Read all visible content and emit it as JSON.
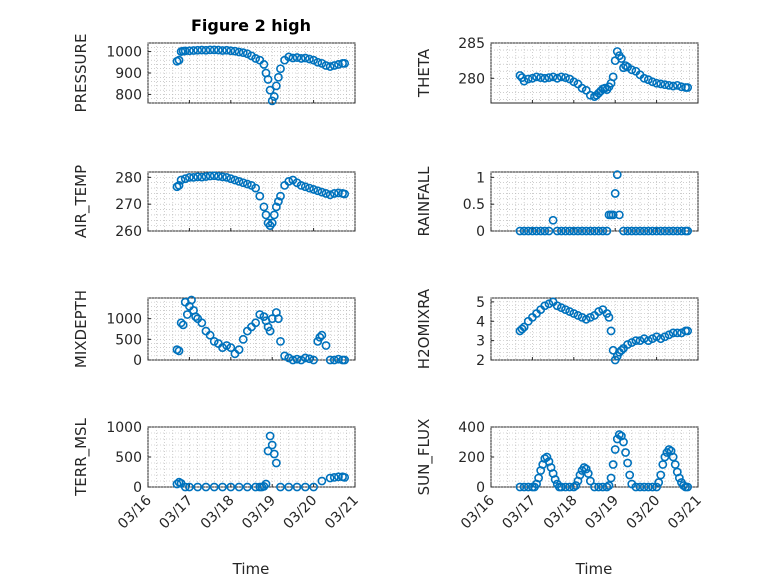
{
  "title": "Figure 2 high",
  "xlabel": "Time",
  "x_ticks": [
    "03/16",
    "03/17",
    "03/18",
    "03/19",
    "03/20",
    "03/21"
  ],
  "marker_color": "#0072BD",
  "chart_data": [
    {
      "type": "scatter",
      "id": "pressure",
      "ylabel": "PRESSURE",
      "ylim": [
        760,
        1040
      ],
      "y_ticks": [
        800,
        900,
        1000
      ],
      "grid": true,
      "x": [
        0.7,
        0.75,
        0.8,
        0.85,
        0.9,
        1,
        1.1,
        1.2,
        1.3,
        1.4,
        1.5,
        1.6,
        1.7,
        1.8,
        1.9,
        2,
        2.1,
        2.2,
        2.3,
        2.4,
        2.5,
        2.6,
        2.7,
        2.8,
        2.85,
        2.9,
        2.95,
        3.0,
        3.05,
        3.1,
        3.15,
        3.2,
        3.3,
        3.4,
        3.5,
        3.6,
        3.7,
        3.8,
        3.9,
        4.0,
        4.1,
        4.2,
        4.3,
        4.4,
        4.5,
        4.6,
        4.7,
        4.75
      ],
      "y": [
        955,
        960,
        1000,
        1002,
        1003,
        1004,
        1005,
        1006,
        1007,
        1006,
        1008,
        1008,
        1007,
        1005,
        1006,
        1004,
        1002,
        998,
        995,
        990,
        980,
        968,
        960,
        940,
        900,
        870,
        820,
        770,
        790,
        840,
        880,
        920,
        960,
        975,
        970,
        972,
        968,
        970,
        965,
        960,
        950,
        945,
        935,
        930,
        935,
        940,
        945,
        945
      ]
    },
    {
      "type": "scatter",
      "id": "theta",
      "ylabel": "THETA",
      "ylim": [
        276.5,
        285
      ],
      "y_ticks": [
        280,
        285
      ],
      "grid": true,
      "x": [
        0.7,
        0.75,
        0.8,
        0.9,
        1,
        1.1,
        1.2,
        1.3,
        1.4,
        1.5,
        1.6,
        1.7,
        1.8,
        1.9,
        2,
        2.1,
        2.2,
        2.3,
        2.4,
        2.5,
        2.55,
        2.6,
        2.65,
        2.7,
        2.75,
        2.8,
        2.85,
        2.9,
        2.95,
        3.0,
        3.05,
        3.1,
        3.15,
        3.2,
        3.25,
        3.3,
        3.4,
        3.5,
        3.6,
        3.7,
        3.8,
        3.9,
        4.0,
        4.1,
        4.2,
        4.3,
        4.4,
        4.5,
        4.6,
        4.7,
        4.75
      ],
      "y": [
        280.4,
        280.1,
        279.6,
        279.9,
        280.0,
        280.2,
        280.1,
        280.0,
        280.1,
        280.2,
        280.0,
        280.2,
        280.1,
        279.9,
        279.5,
        279.2,
        278.6,
        278.3,
        277.6,
        277.4,
        277.6,
        277.9,
        278.2,
        278.5,
        278.6,
        278.4,
        278.8,
        279.3,
        280.2,
        282.5,
        283.8,
        283.2,
        282.8,
        281.5,
        281.8,
        281.6,
        281.2,
        281.0,
        280.5,
        280.0,
        279.8,
        279.5,
        279.3,
        279.2,
        279.1,
        279.0,
        278.9,
        279.0,
        278.8,
        278.7,
        278.7
      ]
    },
    {
      "type": "scatter",
      "id": "air_temp",
      "ylabel": "AIR_TEMP",
      "ylim": [
        260,
        282
      ],
      "y_ticks": [
        260,
        270,
        280
      ],
      "grid": true,
      "x": [
        0.7,
        0.75,
        0.8,
        0.9,
        1,
        1.1,
        1.2,
        1.3,
        1.4,
        1.5,
        1.6,
        1.7,
        1.8,
        1.9,
        2,
        2.1,
        2.2,
        2.3,
        2.4,
        2.5,
        2.6,
        2.7,
        2.8,
        2.85,
        2.9,
        2.95,
        3.0,
        3.05,
        3.1,
        3.15,
        3.2,
        3.3,
        3.4,
        3.5,
        3.6,
        3.7,
        3.8,
        3.9,
        4.0,
        4.1,
        4.2,
        4.3,
        4.4,
        4.5,
        4.6,
        4.7,
        4.75
      ],
      "y": [
        276.5,
        277,
        279,
        279.5,
        280,
        280,
        280.2,
        280.1,
        280.3,
        280.5,
        280.6,
        280.4,
        280.2,
        280.0,
        279.5,
        279,
        278.5,
        278,
        277.5,
        277,
        276,
        273,
        269,
        266,
        263,
        262,
        263,
        266,
        269,
        271,
        273,
        277,
        278.5,
        279,
        278,
        277,
        276.5,
        276,
        275.5,
        275,
        274.5,
        274,
        273.5,
        274,
        274.2,
        274,
        273.8
      ]
    },
    {
      "type": "scatter",
      "id": "rainfall",
      "ylabel": "RAINFALL",
      "ylim": [
        0,
        1.1
      ],
      "y_ticks": [
        0,
        0.5,
        1
      ],
      "grid": true,
      "x": [
        0.7,
        0.8,
        0.9,
        1,
        1.1,
        1.2,
        1.3,
        1.4,
        1.5,
        1.6,
        1.7,
        1.8,
        1.9,
        2,
        2.1,
        2.2,
        2.3,
        2.4,
        2.5,
        2.6,
        2.7,
        2.8,
        2.85,
        2.9,
        2.95,
        3.0,
        3.05,
        3.1,
        3.2,
        3.3,
        3.4,
        3.5,
        3.6,
        3.7,
        3.8,
        3.9,
        4.0,
        4.1,
        4.2,
        4.3,
        4.4,
        4.5,
        4.6,
        4.7,
        4.75
      ],
      "y": [
        0,
        0,
        0,
        0,
        0,
        0,
        0,
        0,
        0.2,
        0,
        0,
        0,
        0,
        0,
        0,
        0,
        0,
        0,
        0,
        0,
        0,
        0,
        0.3,
        0.3,
        0.3,
        0.7,
        1.05,
        0.3,
        0,
        0,
        0,
        0,
        0,
        0,
        0,
        0,
        0,
        0,
        0,
        0,
        0,
        0,
        0,
        0,
        0
      ]
    },
    {
      "type": "scatter",
      "id": "mixdepth",
      "ylabel": "MIXDEPTH",
      "ylim": [
        0,
        1500
      ],
      "y_ticks": [
        0,
        500,
        1000
      ],
      "grid": true,
      "x": [
        0.7,
        0.75,
        0.8,
        0.85,
        0.9,
        0.95,
        1.0,
        1.05,
        1.1,
        1.15,
        1.2,
        1.3,
        1.4,
        1.5,
        1.6,
        1.7,
        1.8,
        1.9,
        2.0,
        2.1,
        2.2,
        2.3,
        2.4,
        2.5,
        2.6,
        2.7,
        2.8,
        2.85,
        2.9,
        2.95,
        3.0,
        3.1,
        3.15,
        3.2,
        3.3,
        3.4,
        3.5,
        3.6,
        3.7,
        3.8,
        3.9,
        4.0,
        4.1,
        4.15,
        4.2,
        4.3,
        4.4,
        4.5,
        4.6,
        4.7,
        4.75
      ],
      "y": [
        250,
        220,
        900,
        850,
        1400,
        1100,
        1300,
        1450,
        1200,
        1050,
        1000,
        900,
        700,
        600,
        450,
        400,
        300,
        350,
        300,
        150,
        250,
        500,
        700,
        800,
        900,
        1100,
        1050,
        950,
        800,
        700,
        1000,
        1150,
        1000,
        450,
        100,
        50,
        0,
        20,
        0,
        50,
        30,
        0,
        450,
        550,
        600,
        350,
        0,
        0,
        20,
        0,
        0
      ]
    },
    {
      "type": "scatter",
      "id": "h2omixra",
      "ylabel": "H2OMIXRA",
      "ylim": [
        2,
        5.2
      ],
      "y_ticks": [
        2,
        3,
        4,
        5
      ],
      "grid": true,
      "x": [
        0.7,
        0.75,
        0.8,
        0.9,
        1.0,
        1.1,
        1.2,
        1.3,
        1.4,
        1.5,
        1.6,
        1.7,
        1.8,
        1.9,
        2.0,
        2.1,
        2.2,
        2.3,
        2.4,
        2.5,
        2.6,
        2.7,
        2.8,
        2.85,
        2.9,
        2.95,
        3.0,
        3.05,
        3.1,
        3.15,
        3.2,
        3.3,
        3.4,
        3.5,
        3.6,
        3.7,
        3.8,
        3.9,
        4.0,
        4.1,
        4.2,
        4.3,
        4.4,
        4.5,
        4.6,
        4.7,
        4.75
      ],
      "y": [
        3.5,
        3.6,
        3.7,
        4.0,
        4.2,
        4.4,
        4.6,
        4.8,
        4.9,
        5.0,
        4.8,
        4.7,
        4.6,
        4.5,
        4.4,
        4.3,
        4.2,
        4.1,
        4.2,
        4.3,
        4.5,
        4.6,
        4.4,
        4.2,
        3.5,
        2.5,
        2.0,
        2.2,
        2.4,
        2.5,
        2.6,
        2.8,
        2.9,
        3.0,
        3.0,
        3.1,
        3.0,
        3.1,
        3.2,
        3.1,
        3.2,
        3.3,
        3.4,
        3.4,
        3.4,
        3.5,
        3.5
      ]
    },
    {
      "type": "scatter",
      "id": "terr_msl",
      "ylabel": "TERR_MSL",
      "ylim": [
        0,
        1000
      ],
      "y_ticks": [
        0,
        500,
        1000
      ],
      "grid": true,
      "x": [
        0.7,
        0.75,
        0.8,
        0.9,
        1.0,
        1.2,
        1.4,
        1.6,
        1.8,
        2.0,
        2.2,
        2.4,
        2.6,
        2.7,
        2.75,
        2.8,
        2.85,
        2.9,
        2.95,
        3.0,
        3.05,
        3.1,
        3.2,
        3.4,
        3.6,
        3.8,
        4.0,
        4.2,
        4.4,
        4.5,
        4.6,
        4.7,
        4.75
      ],
      "y": [
        50,
        80,
        60,
        0,
        0,
        0,
        0,
        0,
        0,
        0,
        0,
        0,
        0,
        0,
        0,
        10,
        50,
        600,
        850,
        700,
        550,
        400,
        0,
        0,
        0,
        0,
        0,
        100,
        150,
        160,
        170,
        170,
        160
      ]
    },
    {
      "type": "scatter",
      "id": "sun_flux",
      "ylabel": "SUN_FLUX",
      "ylim": [
        0,
        400
      ],
      "y_ticks": [
        0,
        200,
        400
      ],
      "grid": true,
      "x": [
        0.7,
        0.8,
        0.9,
        1.0,
        1.05,
        1.1,
        1.15,
        1.2,
        1.25,
        1.3,
        1.35,
        1.4,
        1.45,
        1.5,
        1.55,
        1.6,
        1.65,
        1.7,
        1.8,
        1.9,
        2.0,
        2.05,
        2.1,
        2.15,
        2.2,
        2.25,
        2.3,
        2.35,
        2.4,
        2.5,
        2.6,
        2.7,
        2.8,
        2.85,
        2.9,
        2.95,
        3.0,
        3.05,
        3.1,
        3.15,
        3.2,
        3.25,
        3.3,
        3.35,
        3.4,
        3.5,
        3.6,
        3.7,
        3.8,
        3.9,
        4.0,
        4.05,
        4.1,
        4.15,
        4.2,
        4.25,
        4.3,
        4.35,
        4.4,
        4.45,
        4.5,
        4.55,
        4.6,
        4.65,
        4.7,
        4.75
      ],
      "y": [
        0,
        0,
        0,
        0,
        0,
        20,
        60,
        110,
        150,
        190,
        200,
        170,
        130,
        90,
        50,
        20,
        0,
        0,
        0,
        0,
        0,
        10,
        40,
        80,
        110,
        130,
        120,
        90,
        40,
        0,
        0,
        0,
        0,
        10,
        60,
        150,
        250,
        320,
        350,
        340,
        300,
        230,
        160,
        80,
        20,
        0,
        0,
        0,
        0,
        0,
        0,
        30,
        80,
        150,
        200,
        230,
        250,
        240,
        200,
        150,
        100,
        60,
        30,
        10,
        0,
        0
      ]
    }
  ]
}
